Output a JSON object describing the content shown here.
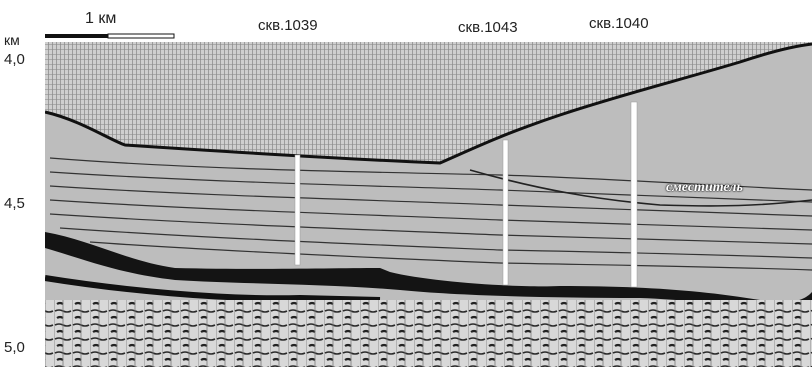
{
  "scale_bar": {
    "label": "1 км",
    "length_km": 1
  },
  "depth_axis": {
    "unit": "км",
    "ticks": [
      {
        "value": 4.0,
        "label": "4,0"
      },
      {
        "value": 4.5,
        "label": "4,5"
      },
      {
        "value": 5.0,
        "label": "5,0"
      }
    ]
  },
  "wells": [
    {
      "name": "скв.1039"
    },
    {
      "name": "скв.1043"
    },
    {
      "name": "скв.1040"
    }
  ],
  "fault_label": "сместитель",
  "colors": {
    "trace": "#3a3a3a",
    "background": "#ffffff",
    "well": "#ffffff",
    "reflector": "#111111"
  }
}
